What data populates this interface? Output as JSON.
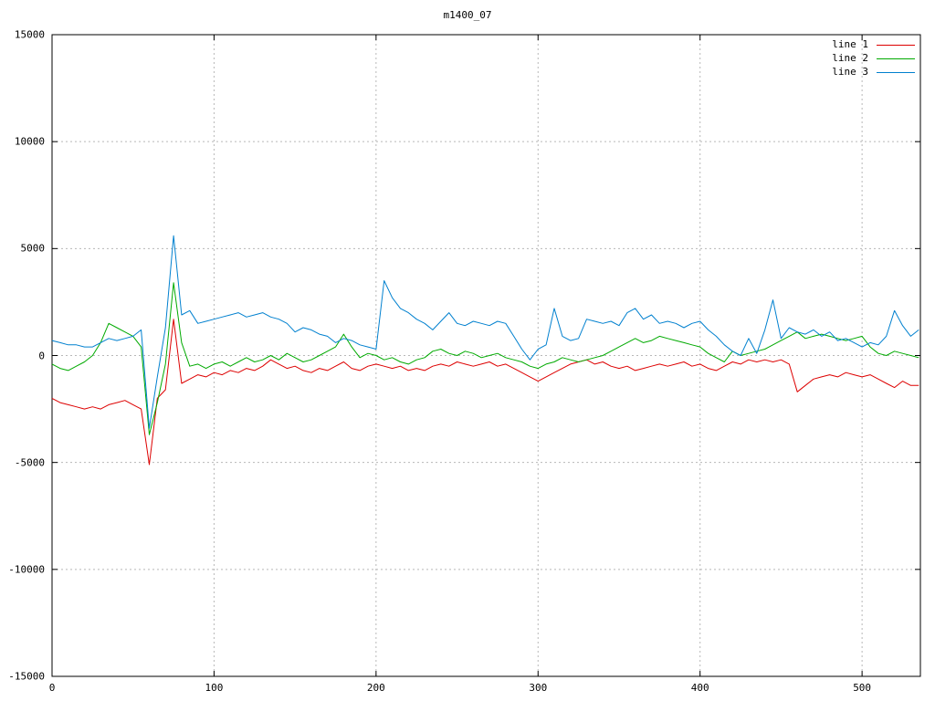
{
  "chart_data": {
    "type": "line",
    "title": "m1400_07",
    "xlabel": "",
    "ylabel": "",
    "xlim": [
      0,
      536
    ],
    "ylim": [
      -15000,
      15000
    ],
    "xticks": [
      0,
      100,
      200,
      300,
      400,
      500
    ],
    "yticks": [
      -15000,
      -10000,
      -5000,
      0,
      5000,
      10000,
      15000
    ],
    "grid": true,
    "grid_style": "dashed",
    "legend_position": "top-right-inside",
    "x": [
      0,
      5,
      10,
      15,
      20,
      25,
      30,
      35,
      40,
      45,
      50,
      55,
      60,
      65,
      70,
      75,
      80,
      85,
      90,
      95,
      100,
      105,
      110,
      115,
      120,
      125,
      130,
      135,
      140,
      145,
      150,
      155,
      160,
      165,
      170,
      175,
      180,
      185,
      190,
      195,
      200,
      205,
      210,
      215,
      220,
      225,
      230,
      235,
      240,
      245,
      250,
      255,
      260,
      265,
      270,
      275,
      280,
      285,
      290,
      295,
      300,
      305,
      310,
      315,
      320,
      325,
      330,
      335,
      340,
      345,
      350,
      355,
      360,
      365,
      370,
      375,
      380,
      385,
      390,
      395,
      400,
      405,
      410,
      415,
      420,
      425,
      430,
      435,
      440,
      445,
      450,
      455,
      460,
      465,
      470,
      475,
      480,
      485,
      490,
      495,
      500,
      505,
      510,
      515,
      520,
      525,
      530,
      535
    ],
    "series": [
      {
        "name": "line 1",
        "color": "#dd0000",
        "values": [
          -2000,
          -2200,
          -2300,
          -2400,
          -2500,
          -2400,
          -2500,
          -2300,
          -2200,
          -2100,
          -2300,
          -2500,
          -5100,
          -2000,
          -1600,
          1700,
          -1300,
          -1100,
          -900,
          -1000,
          -800,
          -900,
          -700,
          -800,
          -600,
          -700,
          -500,
          -200,
          -400,
          -600,
          -500,
          -700,
          -800,
          -600,
          -700,
          -500,
          -300,
          -600,
          -700,
          -500,
          -400,
          -500,
          -600,
          -500,
          -700,
          -600,
          -700,
          -500,
          -400,
          -500,
          -300,
          -400,
          -500,
          -400,
          -300,
          -500,
          -400,
          -600,
          -800,
          -1000,
          -1200,
          -1000,
          -800,
          -600,
          -400,
          -300,
          -200,
          -400,
          -300,
          -500,
          -600,
          -500,
          -700,
          -600,
          -500,
          -400,
          -500,
          -400,
          -300,
          -500,
          -400,
          -600,
          -700,
          -500,
          -300,
          -400,
          -200,
          -300,
          -200,
          -300,
          -200,
          -400,
          -1700,
          -1400,
          -1100,
          -1000,
          -900,
          -1000,
          -800,
          -900,
          -1000,
          -900,
          -1100,
          -1300,
          -1500,
          -1200,
          -1400,
          -1400
        ]
      },
      {
        "name": "line 2",
        "color": "#00aa00",
        "values": [
          -400,
          -600,
          -700,
          -500,
          -300,
          0,
          600,
          1500,
          1300,
          1100,
          900,
          400,
          -3700,
          -2200,
          -400,
          3400,
          600,
          -500,
          -400,
          -600,
          -400,
          -300,
          -500,
          -300,
          -100,
          -300,
          -200,
          0,
          -200,
          100,
          -100,
          -300,
          -200,
          0,
          200,
          400,
          1000,
          400,
          -100,
          100,
          0,
          -200,
          -100,
          -300,
          -400,
          -200,
          -100,
          200,
          300,
          100,
          0,
          200,
          100,
          -100,
          0,
          100,
          -100,
          -200,
          -300,
          -500,
          -600,
          -400,
          -300,
          -100,
          -200,
          -300,
          -200,
          -100,
          0,
          200,
          400,
          600,
          800,
          600,
          700,
          900,
          800,
          700,
          600,
          500,
          400,
          100,
          -100,
          -300,
          200,
          0,
          100,
          200,
          300,
          500,
          700,
          900,
          1100,
          800,
          900,
          1000,
          900,
          800,
          700,
          800,
          900,
          400,
          100,
          0,
          200,
          100,
          0,
          -100
        ]
      },
      {
        "name": "line 3",
        "color": "#0080cf",
        "values": [
          700,
          600,
          500,
          500,
          400,
          400,
          600,
          800,
          700,
          800,
          900,
          1200,
          -3400,
          -1000,
          1300,
          5600,
          1900,
          2100,
          1500,
          1600,
          1700,
          1800,
          1900,
          2000,
          1800,
          1900,
          2000,
          1800,
          1700,
          1500,
          1100,
          1300,
          1200,
          1000,
          900,
          600,
          800,
          700,
          500,
          400,
          300,
          3500,
          2700,
          2200,
          2000,
          1700,
          1500,
          1200,
          1600,
          2000,
          1500,
          1400,
          1600,
          1500,
          1400,
          1600,
          1500,
          900,
          300,
          -200,
          300,
          500,
          2200,
          900,
          700,
          800,
          1700,
          1600,
          1500,
          1600,
          1400,
          2000,
          2200,
          1700,
          1900,
          1500,
          1600,
          1500,
          1300,
          1500,
          1600,
          1200,
          900,
          500,
          200,
          0,
          800,
          100,
          1200,
          2600,
          800,
          1300,
          1100,
          1000,
          1200,
          900,
          1100,
          700,
          800,
          600,
          400,
          600,
          500,
          900,
          2100,
          1400,
          900,
          1200
        ]
      }
    ]
  },
  "colors": {
    "background": "#ffffff",
    "border": "#000000",
    "grid": "#b8b8b8",
    "series1": "#dd0000",
    "series2": "#00aa00",
    "series3": "#0080cf"
  }
}
